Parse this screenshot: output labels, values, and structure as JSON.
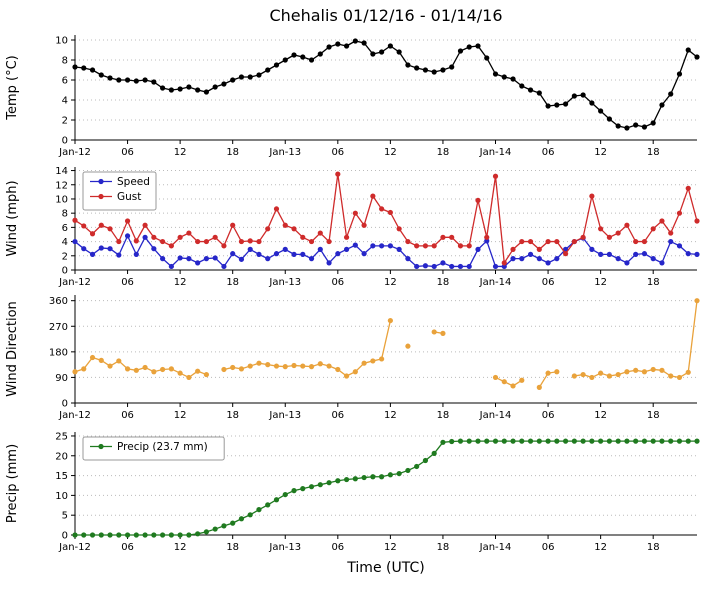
{
  "title": "Chehalis 01/12/16 - 01/14/16",
  "xlabel": "Time (UTC)",
  "x_tick_labels": [
    "Jan-12",
    "06",
    "12",
    "18",
    "Jan-13",
    "06",
    "12",
    "18",
    "Jan-14",
    "06",
    "12",
    "18"
  ],
  "x_tick_hours": [
    0,
    6,
    12,
    18,
    24,
    30,
    36,
    42,
    48,
    54,
    60,
    66
  ],
  "hours_total": 72,
  "colors": {
    "temp": "#000000",
    "speed": "#2626c9",
    "gust": "#cf2b2b",
    "direction": "#e9a23b",
    "precip": "#1f7a1f",
    "grid": "#bbbbbb"
  },
  "chart_data": [
    {
      "type": "line",
      "name": "temp",
      "ylabel": "Temp (°C)",
      "ylim": [
        0,
        10.5
      ],
      "yticks": [
        0,
        2,
        4,
        6,
        8,
        10
      ],
      "legend": false,
      "series": [
        {
          "name": "Temp",
          "color": "#000000",
          "values": [
            7.3,
            7.2,
            7.0,
            6.5,
            6.2,
            6.0,
            6.0,
            5.9,
            6.0,
            5.8,
            5.2,
            5.0,
            5.1,
            5.3,
            5.0,
            4.8,
            5.3,
            5.6,
            6.0,
            6.3,
            6.3,
            6.5,
            7.0,
            7.5,
            8.0,
            8.5,
            8.3,
            8.0,
            8.6,
            9.3,
            9.6,
            9.4,
            9.9,
            9.7,
            8.6,
            8.8,
            9.4,
            8.8,
            7.5,
            7.2,
            7.0,
            6.8,
            7.0,
            7.3,
            8.9,
            9.3,
            9.4,
            8.2,
            6.6,
            6.3,
            6.1,
            5.4,
            5.0,
            4.7,
            3.4,
            3.5,
            3.6,
            4.4,
            4.5,
            3.7,
            2.9,
            2.1,
            1.4,
            1.2,
            1.5,
            1.3,
            1.7,
            3.5,
            4.6,
            6.6,
            9.0,
            8.3
          ]
        }
      ]
    },
    {
      "type": "line",
      "name": "wind",
      "ylabel": "Wind (mph)",
      "ylim": [
        0,
        14.5
      ],
      "yticks": [
        0,
        2,
        4,
        6,
        8,
        10,
        12,
        14
      ],
      "legend": true,
      "series": [
        {
          "name": "Speed",
          "color": "#2626c9",
          "values": [
            4.0,
            3.0,
            2.2,
            3.1,
            3.0,
            2.1,
            4.8,
            2.2,
            4.6,
            3.0,
            1.6,
            0.5,
            1.7,
            1.6,
            1.0,
            1.6,
            1.7,
            0.5,
            2.3,
            1.5,
            2.9,
            2.2,
            1.6,
            2.3,
            2.9,
            2.2,
            2.2,
            1.6,
            2.9,
            1.0,
            2.3,
            2.9,
            3.5,
            2.3,
            3.4,
            3.4,
            3.4,
            2.9,
            1.6,
            0.5,
            0.6,
            0.5,
            1.0,
            0.5,
            0.5,
            0.5,
            2.9,
            4.1,
            0.5,
            0.5,
            1.6,
            1.6,
            2.2,
            1.6,
            1.0,
            1.6,
            2.9,
            4.0,
            4.5,
            2.9,
            2.2,
            2.2,
            1.6,
            1.0,
            2.2,
            2.3,
            1.6,
            1.0,
            4.0,
            3.4,
            2.3,
            2.2
          ]
        },
        {
          "name": "Gust",
          "color": "#cf2b2b",
          "values": [
            7.0,
            6.2,
            5.1,
            6.3,
            5.8,
            4.0,
            6.9,
            4.1,
            6.3,
            4.6,
            4.0,
            3.4,
            4.6,
            5.2,
            4.0,
            4.0,
            4.6,
            3.4,
            6.3,
            4.0,
            4.1,
            4.0,
            5.8,
            8.6,
            6.3,
            5.8,
            4.6,
            4.0,
            5.2,
            4.0,
            13.5,
            4.6,
            8.0,
            6.3,
            10.4,
            8.6,
            8.1,
            5.8,
            4.0,
            3.4,
            3.4,
            3.4,
            4.6,
            4.6,
            3.4,
            3.4,
            9.8,
            4.6,
            13.2,
            1.0,
            2.9,
            4.0,
            4.0,
            2.9,
            4.0,
            4.0,
            2.3,
            4.0,
            4.6,
            10.4,
            5.8,
            4.6,
            5.2,
            6.3,
            4.0,
            4.0,
            5.8,
            6.9,
            5.2,
            8.0,
            11.5,
            6.9
          ]
        }
      ]
    },
    {
      "type": "line",
      "name": "wind-direction",
      "ylabel": "Wind Direction",
      "ylim": [
        0,
        380
      ],
      "yticks": [
        0,
        90,
        180,
        270,
        360
      ],
      "legend": false,
      "series": [
        {
          "name": "Direction",
          "color": "#e9a23b",
          "values": [
            110,
            120,
            160,
            150,
            130,
            148,
            120,
            115,
            125,
            110,
            118,
            120,
            105,
            90,
            112,
            100,
            null,
            118,
            125,
            120,
            130,
            140,
            135,
            130,
            128,
            132,
            130,
            128,
            138,
            130,
            118,
            95,
            110,
            140,
            148,
            155,
            290,
            null,
            200,
            null,
            null,
            250,
            245,
            null,
            null,
            null,
            null,
            null,
            90,
            75,
            60,
            80,
            null,
            55,
            105,
            110,
            null,
            95,
            100,
            90,
            105,
            95,
            100,
            110,
            115,
            110,
            118,
            115,
            95,
            90,
            108,
            360
          ]
        }
      ]
    },
    {
      "type": "line",
      "name": "precip",
      "ylabel": "Precip (mm)",
      "ylim": [
        0,
        26
      ],
      "yticks": [
        0,
        5,
        10,
        15,
        20,
        25
      ],
      "legend": true,
      "series": [
        {
          "name": "Precip (23.7 mm)",
          "color": "#1f7a1f",
          "values": [
            0,
            0,
            0,
            0,
            0,
            0,
            0,
            0,
            0,
            0,
            0,
            0,
            0,
            0,
            0.3,
            0.8,
            1.5,
            2.3,
            3.0,
            4.1,
            5.1,
            6.4,
            7.6,
            8.9,
            10.2,
            11.2,
            11.7,
            12.2,
            12.7,
            13.2,
            13.7,
            14.0,
            14.2,
            14.5,
            14.7,
            14.7,
            15.2,
            15.5,
            16.3,
            17.3,
            18.8,
            20.6,
            23.4,
            23.6,
            23.7,
            23.7,
            23.7,
            23.7,
            23.7,
            23.7,
            23.7,
            23.7,
            23.7,
            23.7,
            23.7,
            23.7,
            23.7,
            23.7,
            23.7,
            23.7,
            23.7,
            23.7,
            23.7,
            23.7,
            23.7,
            23.7,
            23.7,
            23.7,
            23.7,
            23.7,
            23.7,
            23.7
          ]
        }
      ]
    }
  ]
}
